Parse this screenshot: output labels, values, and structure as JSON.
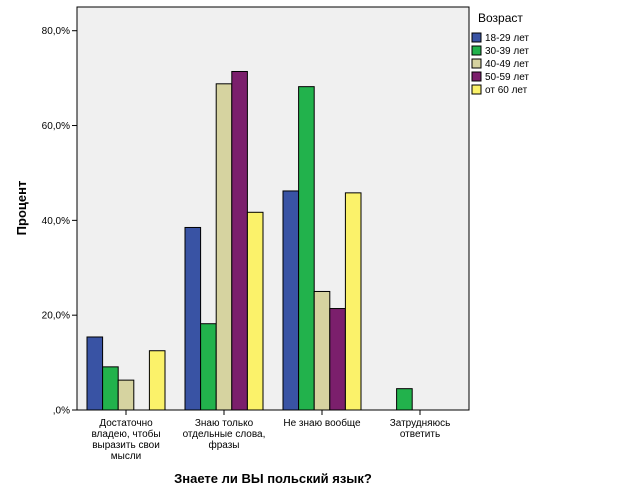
{
  "chart_data": {
    "type": "bar",
    "xlabel": "Знаете ли ВЫ польский язык?",
    "ylabel": "Процент",
    "ylim": [
      0,
      85
    ],
    "yticks": [
      {
        "value": 0,
        "label": ",0%"
      },
      {
        "value": 20,
        "label": "20,0%"
      },
      {
        "value": 40,
        "label": "40,0%"
      },
      {
        "value": 60,
        "label": "60,0%"
      },
      {
        "value": 80,
        "label": "80,0%"
      }
    ],
    "grid": false,
    "legend_position": "right",
    "legend_title": "Возраст",
    "categories": [
      [
        "Достаточно",
        "владею, чтобы",
        "выразить свои",
        "мысли"
      ],
      [
        "Знаю только",
        "отдельные слова,",
        "фразы"
      ],
      [
        "Не знаю вообще"
      ],
      [
        "Затрудняюсь",
        "ответить"
      ]
    ],
    "series": [
      {
        "name": "18-29 лет",
        "color": "#3953a4",
        "values": [
          15.4,
          38.5,
          46.2,
          0
        ]
      },
      {
        "name": "30-39 лет",
        "color": "#22b24c",
        "values": [
          9.1,
          18.2,
          68.2,
          4.5
        ]
      },
      {
        "name": "40-49 лет",
        "color": "#d6d3a0",
        "values": [
          6.3,
          68.8,
          25.0,
          0
        ]
      },
      {
        "name": "50-59 лет",
        "color": "#7b1f6c",
        "values": [
          0,
          71.4,
          21.4,
          0
        ]
      },
      {
        "name": "от 60 лет",
        "color": "#fbf26a",
        "values": [
          12.5,
          41.7,
          45.8,
          0
        ]
      }
    ],
    "colors": {
      "plot_background": "#f0f0f0",
      "bar_stroke": "#000000"
    }
  }
}
